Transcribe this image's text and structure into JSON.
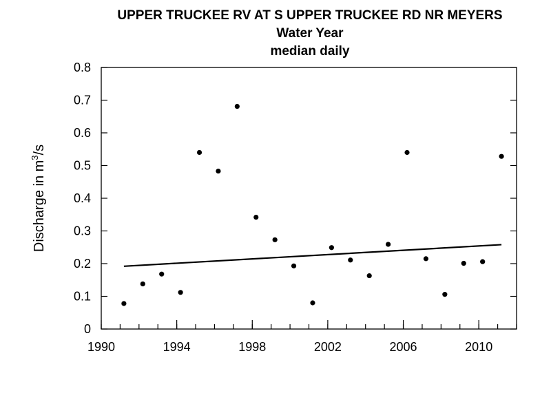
{
  "chart_data": {
    "type": "scatter",
    "title": "UPPER TRUCKEE RV AT S UPPER TRUCKEE RD NR MEYERS",
    "subtitle": [
      "Water Year",
      "median daily"
    ],
    "xlabel": "",
    "ylabel": "Discharge in m",
    "ylabel_sup": "3",
    "ylabel_tail": "/s",
    "xlim": [
      1990,
      2012
    ],
    "ylim": [
      0,
      0.8
    ],
    "xticks": [
      1990,
      1994,
      1998,
      2002,
      2006,
      2010
    ],
    "xticks_minor": [
      1990,
      1991,
      1992,
      1993,
      1994,
      1995,
      1996,
      1997,
      1998,
      1999,
      2000,
      2001,
      2002,
      2003,
      2004,
      2005,
      2006,
      2007,
      2008,
      2009,
      2010,
      2011,
      2012
    ],
    "yticks": [
      "0",
      "0.1",
      "0.2",
      "0.3",
      "0.4",
      "0.5",
      "0.6",
      "0.7",
      "0.8"
    ],
    "grid": false,
    "series": [
      {
        "x": [
          1991.2,
          1992.2,
          1993.2,
          1994.2,
          1995.2,
          1996.2,
          1997.2,
          1998.2,
          1999.2,
          2000.2,
          2001.2,
          2002.2,
          2003.2,
          2004.2,
          2005.2,
          2006.2,
          2007.2,
          2008.2,
          2009.2,
          2010.2,
          2011.2
        ],
        "y": [
          0.078,
          0.138,
          0.168,
          0.112,
          0.54,
          0.483,
          0.681,
          0.342,
          0.273,
          0.193,
          0.08,
          0.249,
          0.211,
          0.163,
          0.259,
          0.54,
          0.215,
          0.106,
          0.201,
          0.206,
          0.528
        ]
      }
    ],
    "trend_line": {
      "x": [
        1991.2,
        2011.2
      ],
      "y": [
        0.192,
        0.258
      ]
    }
  },
  "colors": {
    "points": "#000000",
    "trend": "#000000",
    "axes": "#000000"
  }
}
